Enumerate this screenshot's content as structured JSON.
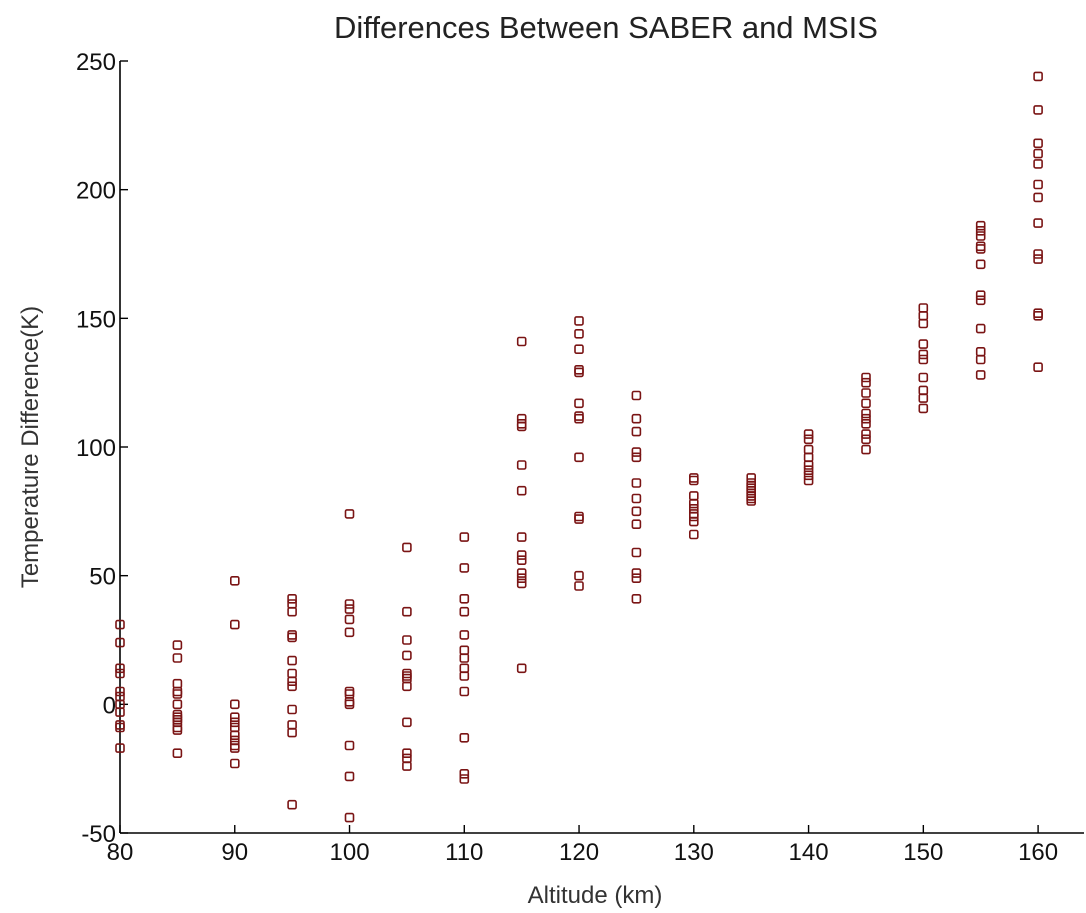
{
  "chart_data": {
    "type": "scatter",
    "title": "Differences Between SABER and MSIS",
    "xlabel": "Altitude (km)",
    "ylabel": "Temperature Difference(K)",
    "xlim": [
      80,
      164
    ],
    "ylim": [
      -50,
      250
    ],
    "xticks": [
      80,
      90,
      100,
      110,
      120,
      130,
      140,
      150,
      160
    ],
    "yticks": [
      -50,
      0,
      50,
      100,
      150,
      200,
      250
    ],
    "grid": false,
    "marker": "square",
    "marker_color": "#7a1414",
    "series": [
      {
        "points": [
          [
            80,
            31
          ],
          [
            80,
            24
          ],
          [
            80,
            14
          ],
          [
            80,
            12
          ],
          [
            80,
            5
          ],
          [
            80,
            3
          ],
          [
            80,
            0
          ],
          [
            80,
            -3
          ],
          [
            80,
            -8
          ],
          [
            80,
            -9
          ],
          [
            80,
            -17
          ],
          [
            85,
            23
          ],
          [
            85,
            18
          ],
          [
            85,
            8
          ],
          [
            85,
            5
          ],
          [
            85,
            4
          ],
          [
            85,
            0
          ],
          [
            85,
            -4
          ],
          [
            85,
            -5
          ],
          [
            85,
            -6
          ],
          [
            85,
            -7
          ],
          [
            85,
            -9
          ],
          [
            85,
            -10
          ],
          [
            85,
            -19
          ],
          [
            90,
            48
          ],
          [
            90,
            31
          ],
          [
            90,
            0
          ],
          [
            90,
            -5
          ],
          [
            90,
            -7
          ],
          [
            90,
            -9
          ],
          [
            90,
            -12
          ],
          [
            90,
            -14
          ],
          [
            90,
            -16
          ],
          [
            90,
            -17
          ],
          [
            90,
            -23
          ],
          [
            95,
            41
          ],
          [
            95,
            39
          ],
          [
            95,
            36
          ],
          [
            95,
            27
          ],
          [
            95,
            26
          ],
          [
            95,
            17
          ],
          [
            95,
            12
          ],
          [
            95,
            9
          ],
          [
            95,
            7
          ],
          [
            95,
            -2
          ],
          [
            95,
            -8
          ],
          [
            95,
            -11
          ],
          [
            95,
            -39
          ],
          [
            100,
            74
          ],
          [
            100,
            39
          ],
          [
            100,
            37
          ],
          [
            100,
            33
          ],
          [
            100,
            28
          ],
          [
            100,
            5
          ],
          [
            100,
            4
          ],
          [
            100,
            1
          ],
          [
            100,
            0
          ],
          [
            100,
            -16
          ],
          [
            100,
            -28
          ],
          [
            100,
            -44
          ],
          [
            105,
            61
          ],
          [
            105,
            36
          ],
          [
            105,
            25
          ],
          [
            105,
            19
          ],
          [
            105,
            12
          ],
          [
            105,
            11
          ],
          [
            105,
            10
          ],
          [
            105,
            7
          ],
          [
            105,
            -7
          ],
          [
            105,
            -19
          ],
          [
            105,
            -21
          ],
          [
            105,
            -24
          ],
          [
            110,
            65
          ],
          [
            110,
            53
          ],
          [
            110,
            41
          ],
          [
            110,
            36
          ],
          [
            110,
            27
          ],
          [
            110,
            21
          ],
          [
            110,
            18
          ],
          [
            110,
            14
          ],
          [
            110,
            11
          ],
          [
            110,
            5
          ],
          [
            110,
            -13
          ],
          [
            110,
            -27
          ],
          [
            110,
            -29
          ],
          [
            115,
            141
          ],
          [
            115,
            111
          ],
          [
            115,
            109
          ],
          [
            115,
            108
          ],
          [
            115,
            93
          ],
          [
            115,
            83
          ],
          [
            115,
            65
          ],
          [
            115,
            58
          ],
          [
            115,
            56
          ],
          [
            115,
            51
          ],
          [
            115,
            49
          ],
          [
            115,
            47
          ],
          [
            115,
            14
          ],
          [
            120,
            149
          ],
          [
            120,
            144
          ],
          [
            120,
            138
          ],
          [
            120,
            130
          ],
          [
            120,
            129
          ],
          [
            120,
            117
          ],
          [
            120,
            112
          ],
          [
            120,
            111
          ],
          [
            120,
            96
          ],
          [
            120,
            73
          ],
          [
            120,
            72
          ],
          [
            120,
            50
          ],
          [
            120,
            46
          ],
          [
            125,
            120
          ],
          [
            125,
            111
          ],
          [
            125,
            106
          ],
          [
            125,
            98
          ],
          [
            125,
            96
          ],
          [
            125,
            86
          ],
          [
            125,
            80
          ],
          [
            125,
            75
          ],
          [
            125,
            70
          ],
          [
            125,
            59
          ],
          [
            125,
            51
          ],
          [
            125,
            49
          ],
          [
            125,
            41
          ],
          [
            130,
            88
          ],
          [
            130,
            87
          ],
          [
            130,
            81
          ],
          [
            130,
            78
          ],
          [
            130,
            76
          ],
          [
            130,
            74
          ],
          [
            130,
            73
          ],
          [
            130,
            71
          ],
          [
            130,
            66
          ],
          [
            135,
            88
          ],
          [
            135,
            86
          ],
          [
            135,
            85
          ],
          [
            135,
            84
          ],
          [
            135,
            83
          ],
          [
            135,
            82
          ],
          [
            135,
            81
          ],
          [
            135,
            80
          ],
          [
            135,
            79
          ],
          [
            140,
            105
          ],
          [
            140,
            103
          ],
          [
            140,
            99
          ],
          [
            140,
            96
          ],
          [
            140,
            93
          ],
          [
            140,
            91
          ],
          [
            140,
            89
          ],
          [
            140,
            87
          ],
          [
            145,
            127
          ],
          [
            145,
            125
          ],
          [
            145,
            121
          ],
          [
            145,
            117
          ],
          [
            145,
            113
          ],
          [
            145,
            111
          ],
          [
            145,
            109
          ],
          [
            145,
            105
          ],
          [
            145,
            103
          ],
          [
            145,
            99
          ],
          [
            150,
            154
          ],
          [
            150,
            151
          ],
          [
            150,
            148
          ],
          [
            150,
            140
          ],
          [
            150,
            136
          ],
          [
            150,
            134
          ],
          [
            150,
            127
          ],
          [
            150,
            122
          ],
          [
            150,
            119
          ],
          [
            150,
            115
          ],
          [
            155,
            186
          ],
          [
            155,
            184
          ],
          [
            155,
            182
          ],
          [
            155,
            178
          ],
          [
            155,
            177
          ],
          [
            155,
            171
          ],
          [
            155,
            159
          ],
          [
            155,
            157
          ],
          [
            155,
            146
          ],
          [
            155,
            137
          ],
          [
            155,
            134
          ],
          [
            155,
            128
          ],
          [
            160,
            244
          ],
          [
            160,
            231
          ],
          [
            160,
            218
          ],
          [
            160,
            214
          ],
          [
            160,
            210
          ],
          [
            160,
            202
          ],
          [
            160,
            197
          ],
          [
            160,
            187
          ],
          [
            160,
            175
          ],
          [
            160,
            173
          ],
          [
            160,
            152
          ],
          [
            160,
            151
          ],
          [
            160,
            131
          ]
        ]
      }
    ]
  }
}
